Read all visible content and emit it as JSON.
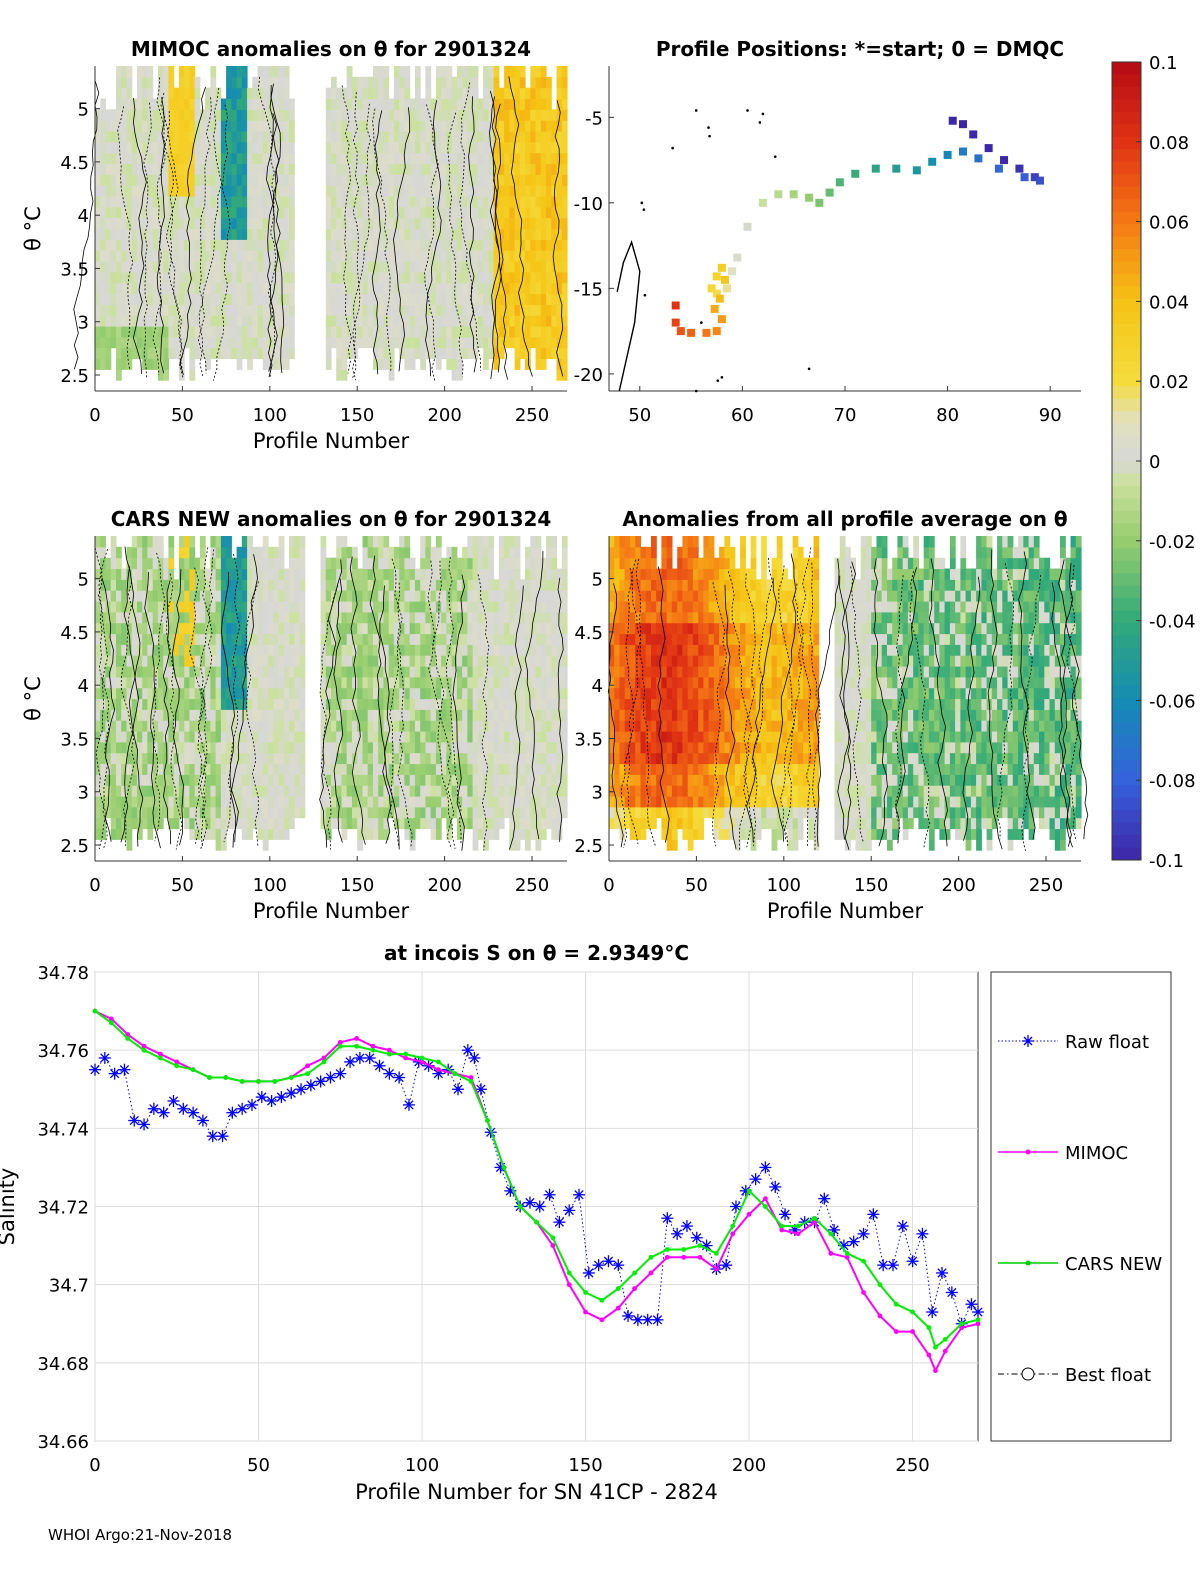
{
  "footer": "WHOI Argo:21-Nov-2018",
  "chart_data": [
    {
      "type": "heatmap",
      "title": "MIMOC anomalies on θ  for 2901324",
      "xlabel": "Profile Number",
      "ylabel": "θ °C",
      "xticks": [
        "0",
        "50",
        "100",
        "150",
        "200",
        "250"
      ],
      "yticks": [
        "2.5",
        "3",
        "3.5",
        "4",
        "4.5",
        "5"
      ],
      "xlim": [
        0,
        270
      ],
      "ylim": [
        2.35,
        5.4
      ],
      "gap": [
        113,
        130
      ]
    },
    {
      "type": "scatter",
      "title": "Profile Positions: *=start; 0 = DMQC",
      "xticks": [
        "50",
        "60",
        "70",
        "80",
        "90"
      ],
      "yticks": [
        "-5",
        "-10",
        "-15",
        "-20"
      ],
      "xlim": [
        47,
        93
      ],
      "ylim": [
        -21,
        -2
      ],
      "track": [
        [
          80.5,
          -5.2
        ],
        [
          81.5,
          -5.4
        ],
        [
          82.5,
          -6.0
        ],
        [
          84,
          -6.8
        ],
        [
          85.5,
          -7.5
        ],
        [
          87,
          -8.0
        ],
        [
          88.5,
          -8.5
        ],
        [
          89,
          -8.7
        ],
        [
          87.5,
          -8.5
        ],
        [
          85,
          -8.0
        ],
        [
          83,
          -7.4
        ],
        [
          81.5,
          -7.0
        ],
        [
          80,
          -7.2
        ],
        [
          78.5,
          -7.6
        ],
        [
          77,
          -8.1
        ],
        [
          75,
          -8.0
        ],
        [
          73,
          -8.0
        ],
        [
          71,
          -8.3
        ],
        [
          69.5,
          -8.8
        ],
        [
          68.5,
          -9.4
        ],
        [
          67.5,
          -10.0
        ],
        [
          66.5,
          -9.7
        ],
        [
          65,
          -9.5
        ],
        [
          63.5,
          -9.5
        ],
        [
          62,
          -10.0
        ],
        [
          60.5,
          -11.4
        ],
        [
          59.5,
          -13.2
        ],
        [
          59,
          -14.0
        ],
        [
          58.5,
          -15.0
        ],
        [
          57.5,
          -15.3
        ],
        [
          57,
          -15.0
        ],
        [
          57.5,
          -14.3
        ],
        [
          58,
          -13.8
        ],
        [
          58.3,
          -14.5
        ],
        [
          57.8,
          -15.6
        ],
        [
          57.3,
          -16.2
        ],
        [
          58,
          -16.8
        ],
        [
          57.5,
          -17.5
        ],
        [
          56.5,
          -17.6
        ],
        [
          55,
          -17.6
        ],
        [
          54,
          -17.5
        ],
        [
          53.5,
          -17.0
        ],
        [
          53.5,
          -16.0
        ]
      ],
      "clim": [
        -0.1,
        0.1
      ],
      "cticks": [
        "0.1",
        "0.08",
        "0.06",
        "0.04",
        "0.02",
        "0",
        "-0.02",
        "-0.04",
        "-0.06",
        "-0.08",
        "-0.1"
      ]
    },
    {
      "type": "heatmap",
      "title": "CARS NEW anomalies on θ for 2901324",
      "xlabel": "Profile Number",
      "ylabel": "θ °C",
      "xticks": [
        "0",
        "50",
        "100",
        "150",
        "200",
        "250"
      ],
      "yticks": [
        "2.5",
        "3",
        "3.5",
        "4",
        "4.5",
        "5"
      ],
      "xlim": [
        0,
        270
      ],
      "ylim": [
        2.35,
        5.4
      ],
      "gap": [
        118,
        128
      ]
    },
    {
      "type": "heatmap",
      "title": "Anomalies from all profile average on θ",
      "xlabel": "Profile Number",
      "xticks": [
        "0",
        "50",
        "100",
        "150",
        "200",
        "250"
      ],
      "yticks": [
        "2.5",
        "3",
        "3.5",
        "4",
        "4.5",
        "5"
      ],
      "xlim": [
        0,
        270
      ],
      "ylim": [
        2.35,
        5.4
      ],
      "gap": [
        118,
        128
      ]
    },
    {
      "type": "line",
      "title": "at incois S on θ = 2.9349°C",
      "xlabel": "Profile Number for SN 41CP - 2824",
      "ylabel": "Salinity",
      "xlim": [
        0,
        270
      ],
      "ylim": [
        34.66,
        34.78
      ],
      "xticks": [
        "0",
        "50",
        "100",
        "150",
        "200",
        "250"
      ],
      "yticks": [
        "34.66",
        "34.68",
        "34.7",
        "34.72",
        "34.74",
        "34.76",
        "34.78"
      ],
      "legend": [
        "Raw float",
        "MIMOC",
        "CARS NEW",
        "Best float"
      ],
      "series": [
        {
          "name": "Raw float",
          "color": "#0000ff",
          "x": [
            0,
            3,
            6,
            9,
            12,
            15,
            18,
            21,
            24,
            27,
            30,
            33,
            36,
            39,
            42,
            45,
            48,
            51,
            54,
            57,
            60,
            63,
            66,
            69,
            72,
            75,
            78,
            81,
            84,
            87,
            90,
            93,
            96,
            99,
            102,
            105,
            108,
            111,
            114,
            116,
            118,
            121,
            124,
            127,
            130,
            133,
            136,
            139,
            142,
            145,
            148,
            151,
            154,
            157,
            160,
            163,
            166,
            169,
            172,
            175,
            178,
            181,
            184,
            187,
            190,
            193,
            196,
            199,
            202,
            205,
            208,
            211,
            214,
            217,
            220,
            223,
            226,
            229,
            232,
            235,
            238,
            241,
            244,
            247,
            250,
            253,
            256,
            259,
            262,
            265,
            268,
            270
          ],
          "y": [
            34.755,
            34.758,
            34.754,
            34.755,
            34.742,
            34.741,
            34.745,
            34.744,
            34.747,
            34.745,
            34.744,
            34.742,
            34.738,
            34.738,
            34.744,
            34.745,
            34.746,
            34.748,
            34.747,
            34.748,
            34.749,
            34.75,
            34.751,
            34.752,
            34.753,
            34.754,
            34.757,
            34.758,
            34.758,
            34.756,
            34.754,
            34.753,
            34.746,
            34.757,
            34.756,
            34.754,
            34.755,
            34.75,
            34.76,
            34.758,
            34.75,
            34.739,
            34.73,
            34.724,
            34.72,
            34.721,
            34.72,
            34.723,
            34.716,
            34.719,
            34.723,
            34.703,
            34.705,
            34.706,
            34.705,
            34.692,
            34.691,
            34.691,
            34.691,
            34.717,
            34.713,
            34.715,
            34.712,
            34.71,
            34.704,
            34.705,
            34.72,
            34.724,
            34.727,
            34.73,
            34.725,
            34.718,
            34.714,
            34.716,
            34.716,
            34.722,
            34.714,
            34.71,
            34.711,
            34.713,
            34.718,
            34.705,
            34.705,
            34.715,
            34.706,
            34.713,
            34.693,
            34.703,
            34.698,
            34.69,
            34.695,
            34.693
          ]
        },
        {
          "name": "MIMOC",
          "color": "#ff00ff",
          "x": [
            0,
            5,
            10,
            15,
            20,
            25,
            30,
            35,
            40,
            45,
            50,
            55,
            60,
            65,
            70,
            75,
            80,
            85,
            90,
            95,
            100,
            105,
            110,
            115,
            120,
            125,
            130,
            135,
            140,
            145,
            150,
            155,
            160,
            165,
            170,
            175,
            180,
            185,
            190,
            195,
            200,
            205,
            210,
            215,
            220,
            225,
            230,
            235,
            240,
            245,
            250,
            255,
            257,
            260,
            265,
            270
          ],
          "y": [
            34.77,
            34.768,
            34.764,
            34.761,
            34.759,
            34.757,
            34.755,
            34.753,
            34.753,
            34.752,
            34.752,
            34.752,
            34.753,
            34.756,
            34.758,
            34.762,
            34.763,
            34.761,
            34.76,
            34.758,
            34.757,
            34.755,
            34.754,
            34.753,
            34.742,
            34.73,
            34.72,
            34.716,
            34.71,
            34.7,
            34.693,
            34.691,
            34.694,
            34.699,
            34.703,
            34.707,
            34.707,
            34.707,
            34.704,
            34.713,
            34.718,
            34.722,
            34.714,
            34.713,
            34.716,
            34.708,
            34.707,
            34.698,
            34.692,
            34.688,
            34.688,
            34.682,
            34.678,
            34.683,
            34.689,
            34.69
          ]
        },
        {
          "name": "CARS NEW",
          "color": "#00ee00",
          "x": [
            0,
            5,
            10,
            15,
            20,
            25,
            30,
            35,
            40,
            45,
            50,
            55,
            60,
            65,
            70,
            75,
            80,
            85,
            90,
            95,
            100,
            105,
            110,
            115,
            120,
            125,
            130,
            135,
            140,
            145,
            150,
            155,
            160,
            165,
            170,
            175,
            180,
            185,
            190,
            195,
            200,
            205,
            210,
            215,
            220,
            225,
            230,
            235,
            240,
            245,
            250,
            255,
            257,
            260,
            265,
            270
          ],
          "y": [
            34.77,
            34.767,
            34.763,
            34.76,
            34.758,
            34.756,
            34.755,
            34.753,
            34.753,
            34.752,
            34.752,
            34.752,
            34.753,
            34.754,
            34.757,
            34.761,
            34.761,
            34.76,
            34.759,
            34.759,
            34.758,
            34.757,
            34.754,
            34.752,
            34.742,
            34.73,
            34.72,
            34.716,
            34.712,
            34.703,
            34.698,
            34.696,
            34.699,
            34.703,
            34.707,
            34.709,
            34.709,
            34.71,
            34.708,
            34.715,
            34.724,
            34.72,
            34.715,
            34.715,
            34.717,
            34.713,
            34.708,
            34.706,
            34.7,
            34.695,
            34.693,
            34.689,
            34.684,
            34.686,
            34.69,
            34.691
          ]
        }
      ]
    }
  ]
}
